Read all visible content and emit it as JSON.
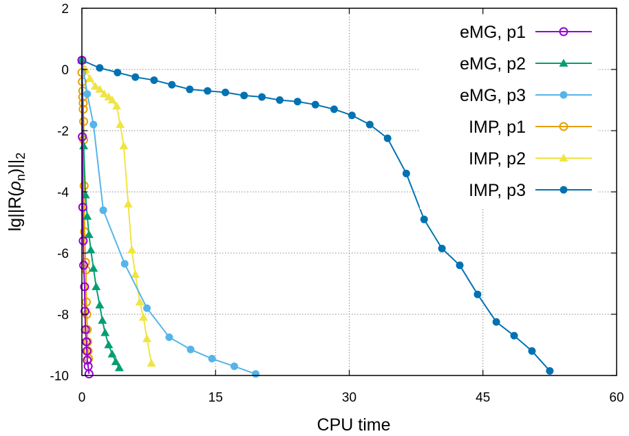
{
  "chart_data": {
    "type": "line",
    "xlabel": "CPU time",
    "ylabel": {
      "prefix": "lg||R(",
      "greek": "ρ",
      "sub_n": "n",
      "close": ")||",
      "sub_2": "2"
    },
    "xlim": [
      0,
      60
    ],
    "ylim": [
      -10,
      2
    ],
    "xticks": [
      0,
      15,
      30,
      45,
      60
    ],
    "yticks": [
      -10,
      -8,
      -6,
      -4,
      -2,
      0,
      2
    ],
    "grid": true,
    "legend_position": "top-right",
    "series": [
      {
        "name": "eMG, p1",
        "color": "#9400d3",
        "marker": "open-circle",
        "x": [
          0.0,
          0.05,
          0.1,
          0.15,
          0.2,
          0.3,
          0.35,
          0.4,
          0.5,
          0.55,
          0.6,
          0.7,
          0.8
        ],
        "y": [
          0.3,
          -2.2,
          -4.5,
          -5.6,
          -6.4,
          -7.1,
          -7.9,
          -8.5,
          -8.9,
          -9.2,
          -9.5,
          -9.7,
          -9.95
        ]
      },
      {
        "name": "eMG, p2",
        "color": "#009e73",
        "marker": "filled-triangle",
        "x": [
          0.0,
          0.2,
          0.4,
          0.6,
          0.8,
          1.0,
          1.3,
          1.6,
          2.0,
          2.3,
          2.6,
          3.0,
          3.4,
          3.8,
          4.2
        ],
        "y": [
          0.3,
          -2.5,
          -4.1,
          -4.8,
          -5.4,
          -5.9,
          -6.5,
          -7.1,
          -7.7,
          -8.2,
          -8.6,
          -9.0,
          -9.3,
          -9.55,
          -9.75
        ]
      },
      {
        "name": "eMG, p3",
        "color": "#56b4e9",
        "marker": "filled-circle",
        "x": [
          0.0,
          0.6,
          1.3,
          2.4,
          4.8,
          7.3,
          9.8,
          12.2,
          14.6,
          17.1,
          19.5
        ],
        "y": [
          0.3,
          -0.8,
          -1.8,
          -4.6,
          -6.35,
          -7.8,
          -8.75,
          -9.15,
          -9.45,
          -9.7,
          -9.95
        ]
      },
      {
        "name": "IMP, p1",
        "color": "#e69f00",
        "marker": "open-circle",
        "x": [
          0.0,
          0.0,
          0.05,
          0.1,
          0.1,
          0.15,
          0.15,
          0.2,
          0.2,
          0.25,
          0.3,
          0.4,
          0.45,
          0.5,
          0.55,
          0.6,
          0.65,
          0.7,
          0.75
        ],
        "y": [
          0.3,
          -0.1,
          -0.4,
          -0.7,
          -0.9,
          -1.1,
          -1.3,
          -1.7,
          -2.3,
          -3.8,
          -5.3,
          -6.3,
          -6.55,
          -7.6,
          -8.0,
          -8.5,
          -8.9,
          -9.2,
          -9.45
        ]
      },
      {
        "name": "IMP, p2",
        "color": "#f0e442",
        "marker": "filled-triangle",
        "x": [
          0.0,
          0.4,
          0.9,
          1.5,
          2.0,
          2.5,
          3.0,
          3.4,
          3.9,
          4.3,
          4.7,
          5.2,
          5.6,
          6.0,
          6.5,
          6.9,
          7.3,
          7.8
        ],
        "y": [
          0.3,
          0.0,
          -0.3,
          -0.55,
          -0.65,
          -0.8,
          -0.9,
          -1.0,
          -1.2,
          -1.8,
          -2.5,
          -4.4,
          -5.9,
          -6.7,
          -7.6,
          -8.1,
          -8.8,
          -9.6
        ]
      },
      {
        "name": "IMP, p3",
        "color": "#0072b2",
        "marker": "filled-circle",
        "x": [
          0.0,
          2.0,
          4.0,
          6.0,
          8.1,
          10.1,
          12.1,
          14.1,
          16.1,
          18.2,
          20.2,
          22.2,
          24.2,
          26.2,
          28.3,
          30.3,
          32.3,
          34.3,
          36.4,
          38.4,
          40.4,
          42.4,
          44.4,
          46.5,
          48.5,
          50.5,
          52.5
        ],
        "y": [
          0.3,
          0.05,
          -0.1,
          -0.25,
          -0.35,
          -0.5,
          -0.65,
          -0.7,
          -0.75,
          -0.85,
          -0.9,
          -1.0,
          -1.05,
          -1.15,
          -1.3,
          -1.5,
          -1.8,
          -2.25,
          -3.4,
          -4.9,
          -5.85,
          -6.4,
          -7.35,
          -8.25,
          -8.7,
          -9.2,
          -9.85
        ]
      }
    ]
  }
}
